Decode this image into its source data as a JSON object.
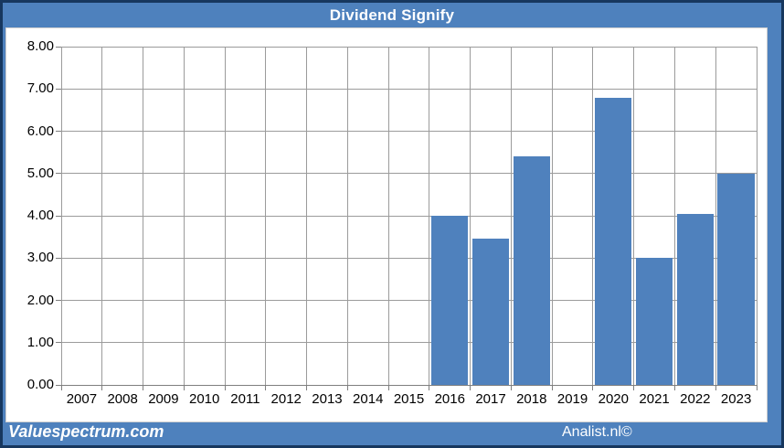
{
  "window": {
    "title": "Dividend Signify"
  },
  "footer": {
    "left_brand": "Valuespectrum.com",
    "right_brand": "Analist.nl©"
  },
  "colors": {
    "frame_blue": "#4e81bd",
    "border_navy": "#17375e",
    "bar_fill": "#4f81bd",
    "grid_gray": "#9b9b9b",
    "axis_gray": "#7f7f7f",
    "panel_white": "#ffffff",
    "label_black": "#000000"
  },
  "chart_data": {
    "type": "bar",
    "title": "Dividend Signify",
    "xlabel": "",
    "ylabel": "",
    "categories": [
      "2007",
      "2008",
      "2009",
      "2010",
      "2011",
      "2012",
      "2013",
      "2014",
      "2015",
      "2016",
      "2017",
      "2018",
      "2019",
      "2020",
      "2021",
      "2022",
      "2023"
    ],
    "values": [
      null,
      null,
      null,
      null,
      null,
      null,
      null,
      null,
      null,
      4.0,
      3.45,
      5.4,
      null,
      6.8,
      3.0,
      4.05,
      5.0
    ],
    "ylim": [
      0,
      8
    ],
    "ytick_step": 1,
    "ytick_decimals": 2,
    "grid": "both",
    "legend": "none"
  }
}
